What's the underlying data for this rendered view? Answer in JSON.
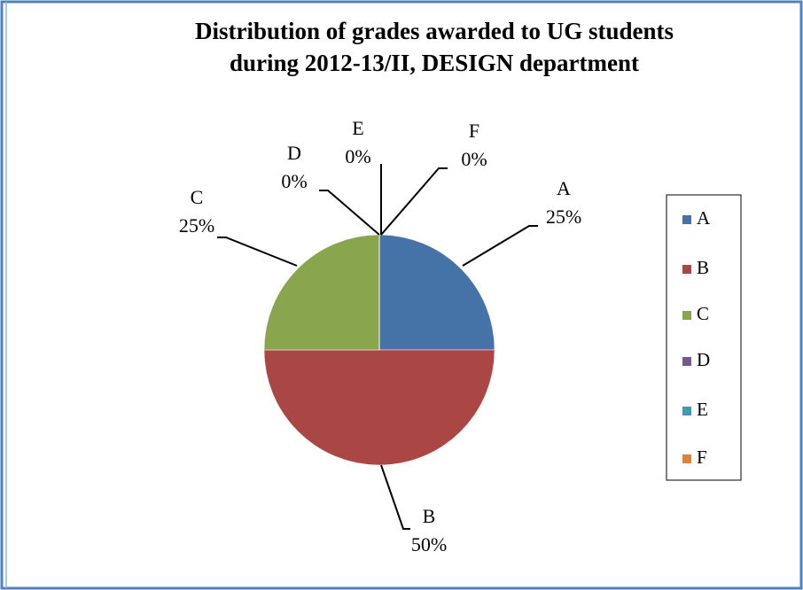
{
  "chart_data": {
    "type": "pie",
    "title": [
      "Distribution of grades awarded to UG students",
      "during 2012-13/II, DESIGN department"
    ],
    "categories": [
      "A",
      "B",
      "C",
      "D",
      "E",
      "F"
    ],
    "values": [
      25,
      50,
      25,
      0,
      0,
      0
    ],
    "value_labels": [
      "25%",
      "50%",
      "25%",
      "0%",
      "0%",
      "0%"
    ],
    "colors": [
      "#4572a7",
      "#aa4643",
      "#89a54e",
      "#71588f",
      "#4198af",
      "#db843d"
    ],
    "legend": "right"
  }
}
